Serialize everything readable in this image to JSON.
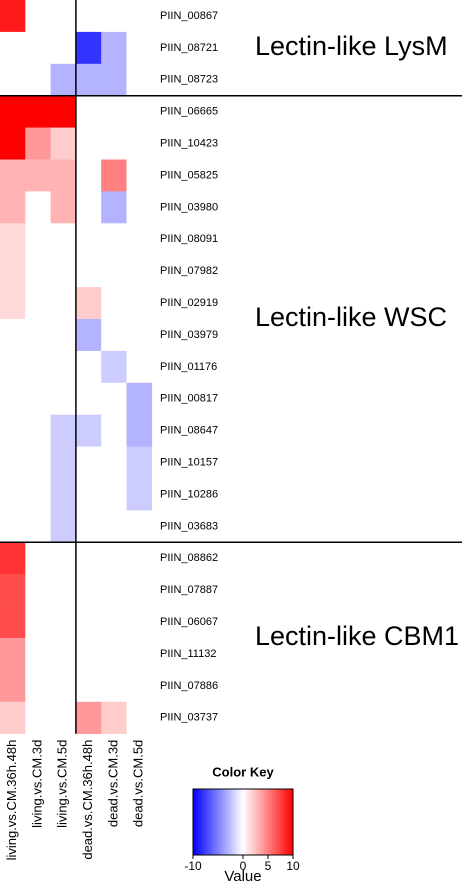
{
  "chart_data": {
    "type": "heatmap",
    "columns": [
      "living.vs.CM.36h.48h",
      "living.vs.CM.3d",
      "living.vs.CM.5d",
      "dead.vs.CM.36h.48h",
      "dead.vs.CM.3d",
      "dead.vs.CM.5d"
    ],
    "groups": [
      {
        "label": "Lectin-like LysM",
        "rows": [
          "PIIN_00867",
          "PIIN_08721",
          "PIIN_08723"
        ],
        "values": [
          [
            9,
            0,
            0,
            0,
            0,
            0
          ],
          [
            0,
            0,
            0,
            -8,
            -3,
            0
          ],
          [
            0,
            0,
            -3,
            -3,
            -3,
            0
          ]
        ]
      },
      {
        "label": "Lectin-like WSC",
        "rows": [
          "PIIN_06665",
          "PIIN_10423",
          "PIIN_05825",
          "PIIN_03980",
          "PIIN_08091",
          "PIIN_07982",
          "PIIN_02919",
          "PIIN_03979",
          "PIIN_01176",
          "PIIN_00817",
          "PIIN_08647",
          "PIIN_10157",
          "PIIN_10286",
          "PIIN_03683"
        ],
        "values": [
          [
            10,
            10,
            10,
            0,
            0,
            0
          ],
          [
            10,
            4,
            2,
            0,
            0,
            0
          ],
          [
            3,
            3,
            3,
            0,
            5,
            0
          ],
          [
            3,
            0,
            3,
            0,
            -3,
            0
          ],
          [
            1.5,
            0,
            0,
            0,
            0,
            0
          ],
          [
            1.5,
            0,
            0,
            0,
            0,
            0
          ],
          [
            1.5,
            0,
            0,
            2,
            0,
            0
          ],
          [
            0,
            0,
            0,
            -3,
            0,
            0
          ],
          [
            0,
            0,
            0,
            0,
            -2,
            0
          ],
          [
            0,
            0,
            0,
            0,
            0,
            -3
          ],
          [
            0,
            0,
            -2,
            -2,
            0,
            -3
          ],
          [
            0,
            0,
            -2,
            0,
            0,
            -2
          ],
          [
            0,
            0,
            -2,
            0,
            0,
            -2
          ],
          [
            0,
            0,
            -2,
            0,
            0,
            0
          ]
        ]
      },
      {
        "label": "Lectin-like CBM1",
        "rows": [
          "PIIN_08862",
          "PIIN_07887",
          "PIIN_06067",
          "PIIN_11132",
          "PIIN_07886",
          "PIIN_03737"
        ],
        "values": [
          [
            8,
            0,
            0,
            0,
            0,
            0
          ],
          [
            7,
            0,
            0,
            0,
            0,
            0
          ],
          [
            7,
            0,
            0,
            0,
            0,
            0
          ],
          [
            4,
            0,
            0,
            0,
            0,
            0
          ],
          [
            4,
            0,
            0,
            0,
            0,
            0
          ],
          [
            2,
            0,
            0,
            4,
            2,
            0
          ]
        ]
      }
    ],
    "colors": [
      "#0000ff",
      "#ffffff",
      "#ff0000"
    ],
    "zlim": [
      -10,
      10
    ],
    "key_title": "Color Key",
    "key_label": "Value",
    "key_ticks": [
      -10,
      0,
      5,
      10
    ]
  }
}
